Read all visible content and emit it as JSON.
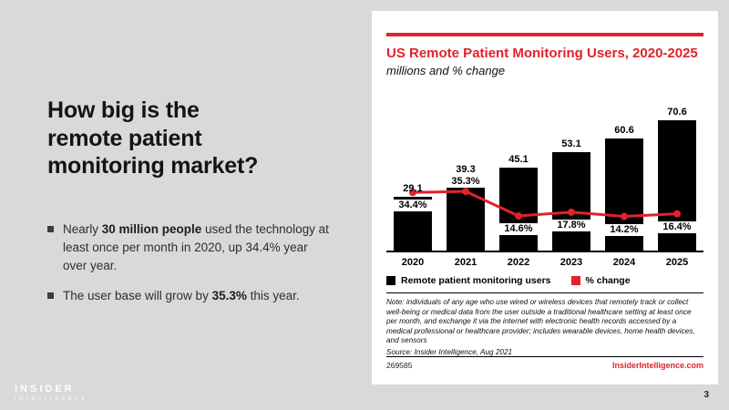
{
  "colors": {
    "accent_red": "#e1222a",
    "slide_bg": "#d9d9d9",
    "bar_black": "#000000"
  },
  "left_panel": {
    "title": "How big is the remote patient monitoring market?",
    "bullets": [
      {
        "pre": "Nearly ",
        "bold": "30 million people",
        "post": " used the technology at least once per month in 2020, up 34.4% year over year."
      },
      {
        "pre": "The user base will grow by ",
        "bold": "35.3%",
        "post": " this year."
      }
    ]
  },
  "chart_panel": {
    "title": "US Remote Patient Monitoring Users, 2020-2025",
    "subtitle": "millions and % change",
    "legend": [
      {
        "label": "Remote patient monitoring users",
        "color": "#000000"
      },
      {
        "label": "% change",
        "color": "#e1222a"
      }
    ],
    "note": "Note: individuals of any age who use wired or wireless devices that remotely track or collect well-being or medical data from the user outside a traditional healthcare setting at least once per month, and exchange it via the internet with electronic health records accessed by a medical professional or healthcare provider; includes wearable devices, home health devices, and sensors",
    "source": "Source: Insider Intelligence, Aug 2021",
    "chart_id": "269585",
    "website": "InsiderIntelligence.com"
  },
  "chart_data": {
    "type": "bar",
    "title": "US Remote Patient Monitoring Users, 2020-2025",
    "subtitle": "millions and % change",
    "categories": [
      "2020",
      "2021",
      "2022",
      "2023",
      "2024",
      "2025"
    ],
    "series": [
      {
        "name": "Remote patient monitoring users",
        "type": "bar",
        "color": "#000000",
        "values": [
          29.1,
          39.3,
          45.1,
          53.1,
          60.6,
          70.6
        ]
      },
      {
        "name": "% change",
        "type": "line",
        "color": "#e1222a",
        "values": [
          34.4,
          35.3,
          14.6,
          17.8,
          14.2,
          16.4
        ],
        "suffix": "%",
        "label_positions": [
          "below",
          "above",
          "below",
          "below",
          "below",
          "below"
        ]
      }
    ],
    "xlabel": "",
    "ylabel": "millions",
    "ylim": [
      0,
      80
    ],
    "grid": false,
    "legend_position": "bottom"
  },
  "footer": {
    "logo_line1": "INSIDER",
    "logo_line2": "INTELLIGENCE",
    "page_number": "3"
  }
}
